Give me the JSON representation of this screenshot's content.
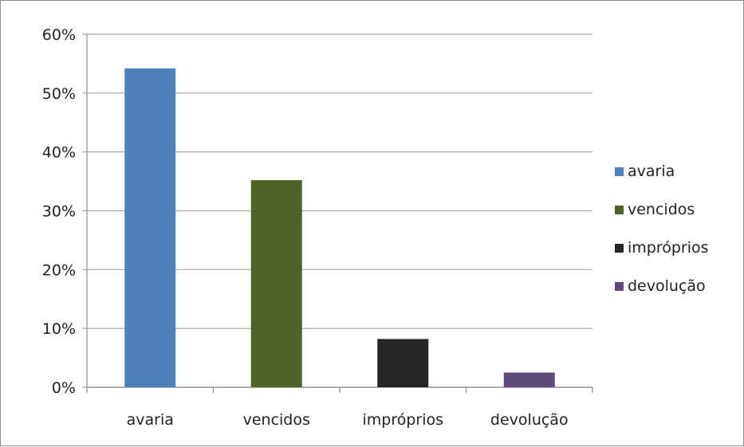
{
  "chart_data": {
    "type": "bar",
    "categories": [
      "avaria",
      "vencidos",
      "impróprios",
      "devolução"
    ],
    "series": [
      {
        "values": [
          0.542,
          0.352,
          0.082,
          0.025
        ],
        "colors": [
          "#4f81bd",
          "#4f6228",
          "#262626",
          "#604a7b"
        ]
      }
    ],
    "y_ticks": [
      "0%",
      "10%",
      "20%",
      "30%",
      "40%",
      "50%",
      "60%"
    ],
    "ylim": [
      0,
      0.6
    ],
    "grid": true,
    "legend": {
      "placement": "right",
      "entries": [
        "avaria",
        "vencidos",
        "impróprios",
        "devolução"
      ]
    },
    "colors": {
      "gridline": "#a6a6a6",
      "axis": "#8c8c8c"
    }
  }
}
